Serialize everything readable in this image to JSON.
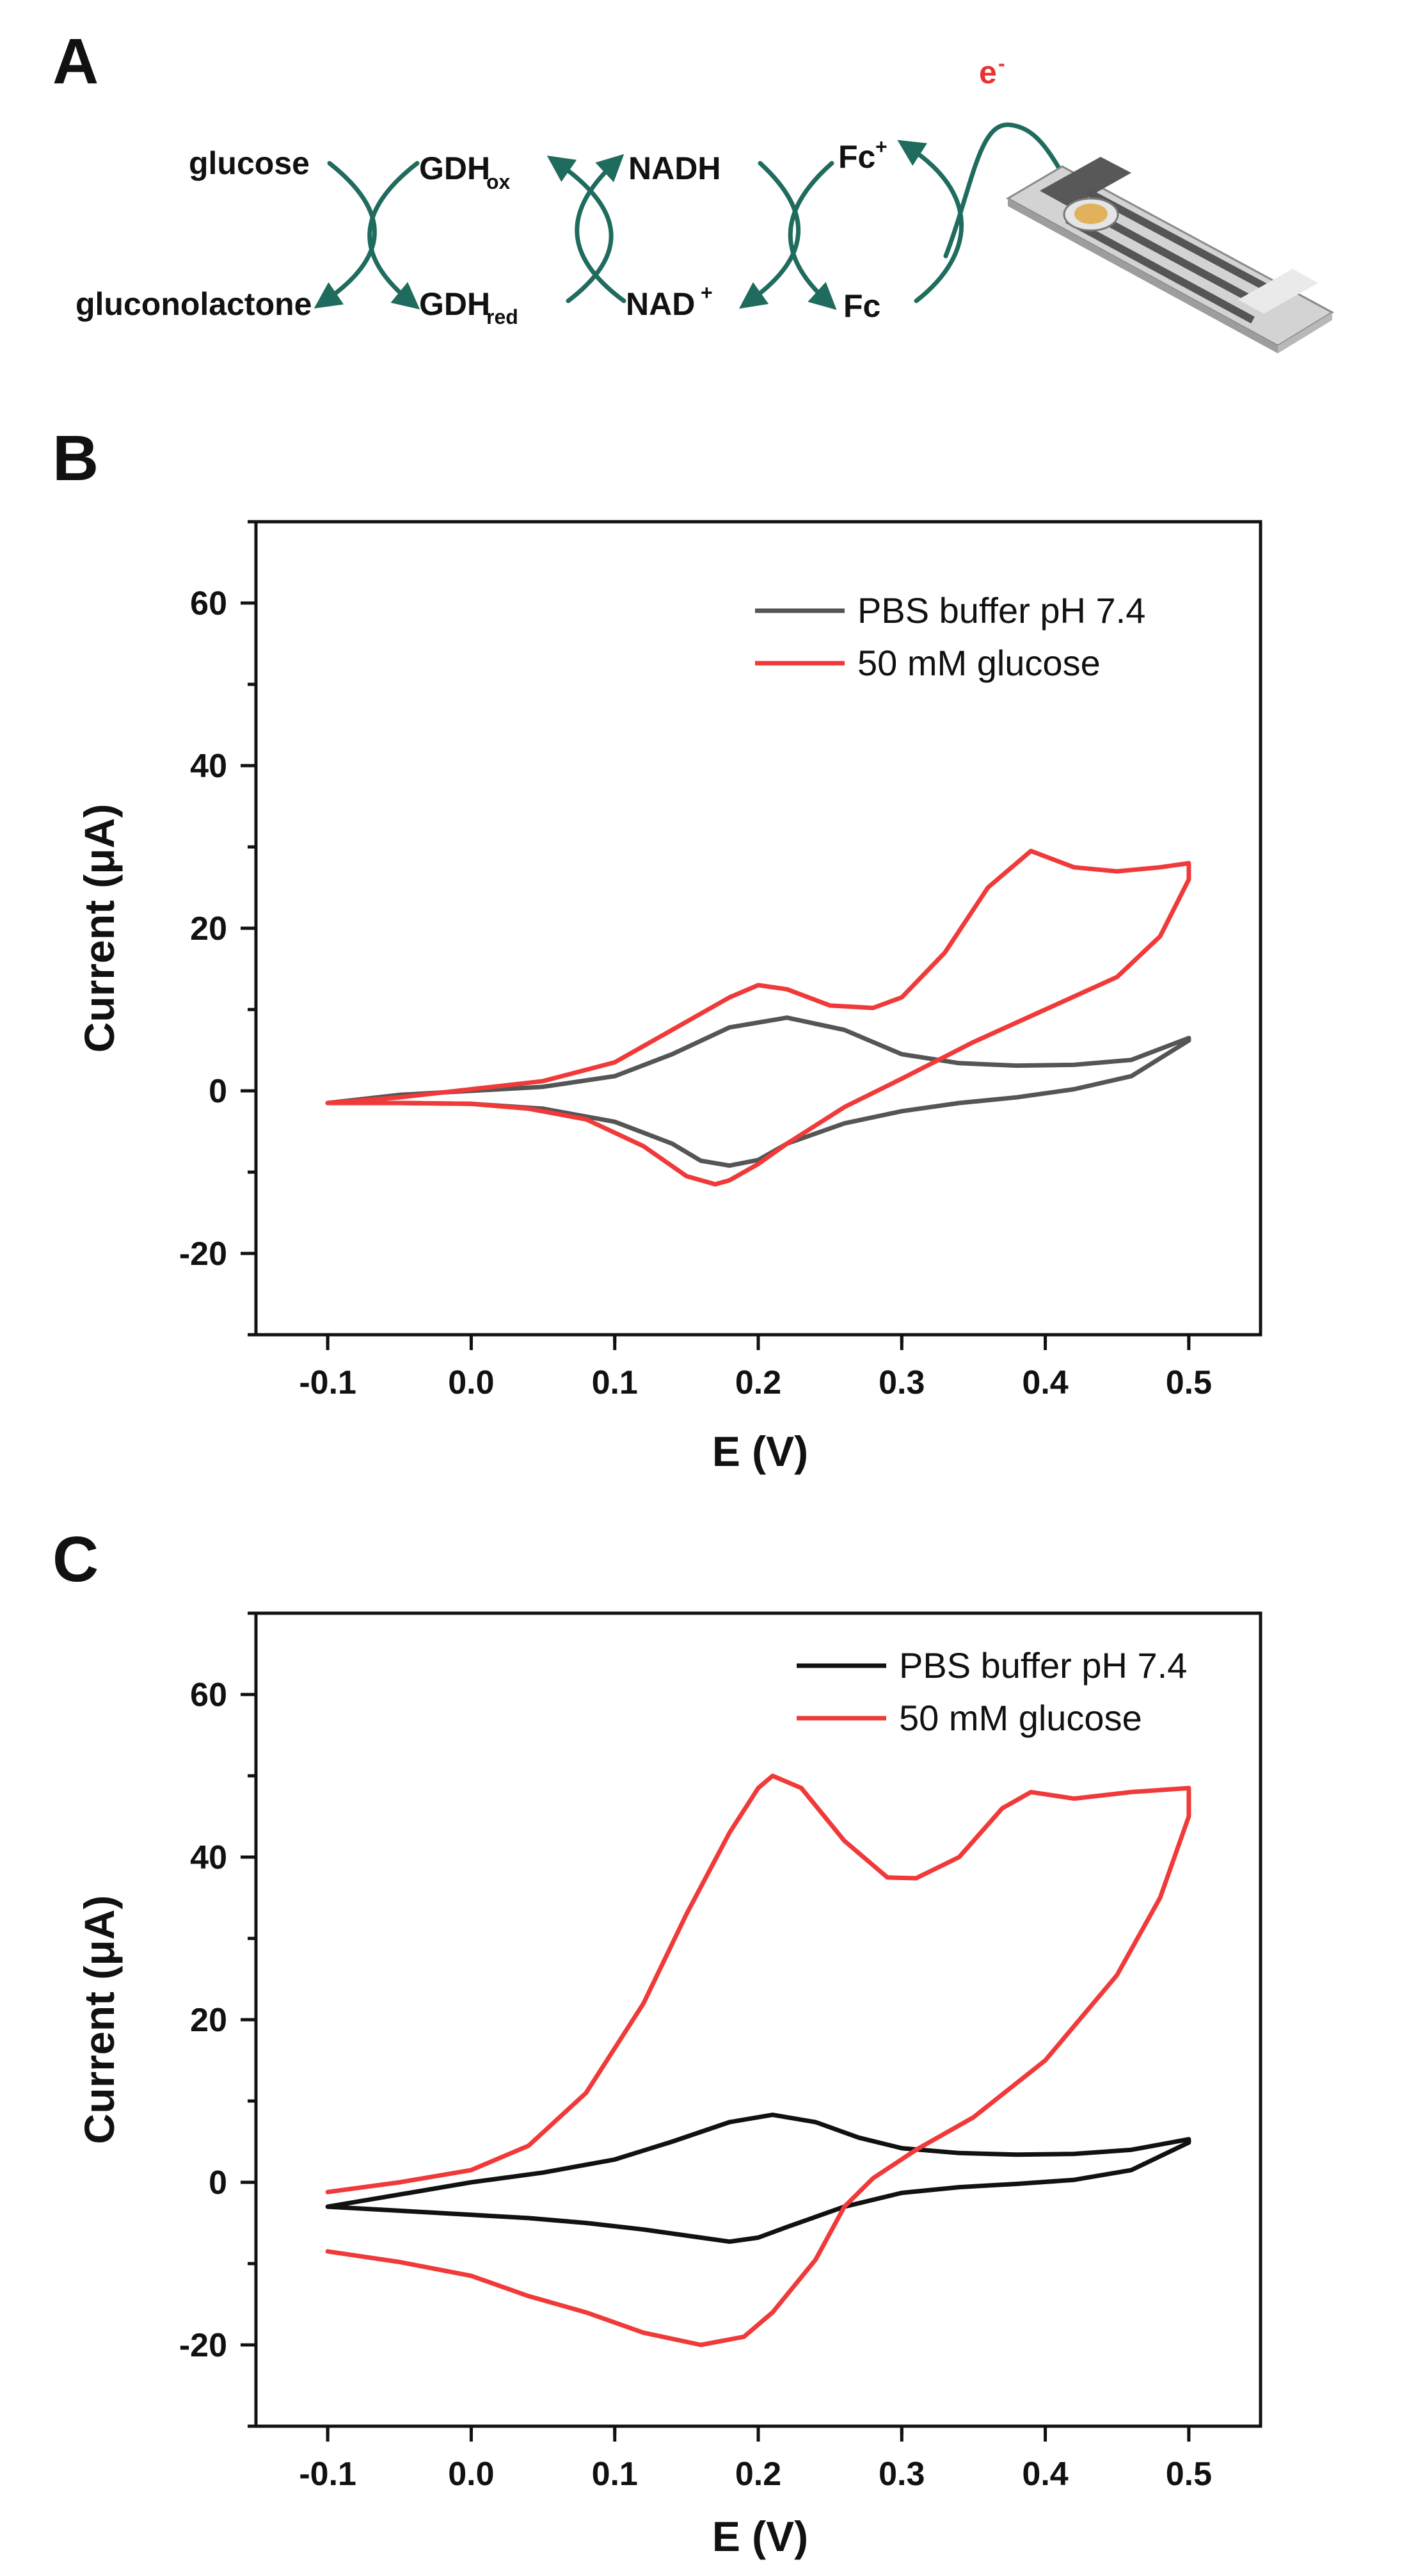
{
  "panels": {
    "A": {
      "letter": "A",
      "scheme": {
        "glucose": "glucose",
        "gluconolactone": "gluconolactone",
        "gdh_ox": "GDH",
        "gdh_ox_sub": "ox",
        "gdh_red": "GDH",
        "gdh_red_sub": "red",
        "nadh": "NADH",
        "nad": "NAD",
        "nad_sup": "+",
        "fc_plus": "Fc",
        "fc_plus_sup": "+",
        "fc": "Fc",
        "electron": "e",
        "electron_sup": "-"
      },
      "colors": {
        "arrow": "#1f6b5e",
        "electron": "#e8322f"
      }
    }
  },
  "chart_data": [
    {
      "panel": "B",
      "type": "line",
      "title": "",
      "xlabel": "E (V)",
      "ylabel": "Current (μA)",
      "xlim": [
        -0.15,
        0.55
      ],
      "ylim": [
        -30,
        70
      ],
      "xticks": [
        -0.1,
        0.0,
        0.1,
        0.2,
        0.3,
        0.4,
        0.5
      ],
      "xtick_labels": [
        "-0.1",
        "0.0",
        "0.1",
        "0.2",
        "0.3",
        "0.4",
        "0.5"
      ],
      "yticks": [
        -20,
        0,
        20,
        40,
        60
      ],
      "ytick_labels": [
        "-20",
        "0",
        "20",
        "40",
        "60"
      ],
      "legend_position": "top-right",
      "series": [
        {
          "name": "PBS buffer pH 7.4",
          "color": "#555555",
          "x": [
            -0.1,
            -0.05,
            0.0,
            0.05,
            0.1,
            0.14,
            0.18,
            0.22,
            0.26,
            0.3,
            0.34,
            0.38,
            0.42,
            0.46,
            0.5,
            0.5,
            0.46,
            0.42,
            0.38,
            0.34,
            0.3,
            0.26,
            0.22,
            0.2,
            0.18,
            0.16,
            0.14,
            0.1,
            0.05,
            0.0,
            -0.05,
            -0.1
          ],
          "y": [
            -1.5,
            -0.5,
            0.0,
            0.5,
            1.8,
            4.5,
            7.8,
            9.0,
            7.5,
            4.5,
            3.4,
            3.1,
            3.2,
            3.8,
            6.5,
            6.2,
            1.8,
            0.2,
            -0.8,
            -1.5,
            -2.5,
            -4.0,
            -6.5,
            -8.5,
            -9.2,
            -8.6,
            -6.5,
            -3.8,
            -2.2,
            -1.6,
            -1.5,
            -1.5
          ]
        },
        {
          "name": "50 mM glucose",
          "color": "#f03a3a",
          "x": [
            -0.1,
            -0.05,
            0.0,
            0.05,
            0.1,
            0.14,
            0.18,
            0.2,
            0.22,
            0.25,
            0.28,
            0.3,
            0.33,
            0.36,
            0.39,
            0.42,
            0.45,
            0.48,
            0.5,
            0.5,
            0.48,
            0.45,
            0.4,
            0.35,
            0.3,
            0.26,
            0.22,
            0.2,
            0.18,
            0.17,
            0.15,
            0.12,
            0.08,
            0.04,
            0.0,
            -0.05,
            -0.1
          ],
          "y": [
            -1.5,
            -0.8,
            0.2,
            1.2,
            3.5,
            7.5,
            11.5,
            13.0,
            12.5,
            10.5,
            10.2,
            11.5,
            17.0,
            25.0,
            29.5,
            27.5,
            27.0,
            27.5,
            28.0,
            26.0,
            19.0,
            14.0,
            10.0,
            6.0,
            1.5,
            -2.0,
            -6.5,
            -9.0,
            -11.0,
            -11.5,
            -10.5,
            -6.8,
            -3.5,
            -2.2,
            -1.6,
            -1.5,
            -1.5
          ]
        }
      ]
    },
    {
      "panel": "C",
      "type": "line",
      "title": "",
      "xlabel": "E (V)",
      "ylabel": "Current (μA)",
      "xlim": [
        -0.15,
        0.55
      ],
      "ylim": [
        -30,
        70
      ],
      "xticks": [
        -0.1,
        0.0,
        0.1,
        0.2,
        0.3,
        0.4,
        0.5
      ],
      "xtick_labels": [
        "-0.1",
        "0.0",
        "0.1",
        "0.2",
        "0.3",
        "0.4",
        "0.5"
      ],
      "yticks": [
        -20,
        0,
        20,
        40,
        60
      ],
      "ytick_labels": [
        "-20",
        "0",
        "20",
        "40",
        "60"
      ],
      "legend_position": "top-right",
      "series": [
        {
          "name": "PBS buffer pH 7.4",
          "color": "#111111",
          "x": [
            -0.1,
            -0.05,
            0.0,
            0.05,
            0.1,
            0.14,
            0.18,
            0.21,
            0.24,
            0.27,
            0.3,
            0.34,
            0.38,
            0.42,
            0.46,
            0.5,
            0.5,
            0.46,
            0.42,
            0.38,
            0.34,
            0.3,
            0.26,
            0.22,
            0.2,
            0.18,
            0.16,
            0.12,
            0.08,
            0.04,
            0.0,
            -0.05,
            -0.1
          ],
          "y": [
            -3.0,
            -1.5,
            0.0,
            1.2,
            2.8,
            5.0,
            7.4,
            8.3,
            7.4,
            5.5,
            4.2,
            3.6,
            3.4,
            3.5,
            4.0,
            5.3,
            4.9,
            1.5,
            0.3,
            -0.2,
            -0.6,
            -1.3,
            -3.0,
            -5.5,
            -6.8,
            -7.3,
            -6.8,
            -5.8,
            -5.0,
            -4.4,
            -4.0,
            -3.5,
            -3.0
          ]
        },
        {
          "name": "50 mM glucose",
          "color": "#f03a3a",
          "x": [
            -0.1,
            -0.05,
            0.0,
            0.04,
            0.08,
            0.12,
            0.15,
            0.18,
            0.2,
            0.21,
            0.23,
            0.26,
            0.29,
            0.31,
            0.34,
            0.37,
            0.39,
            0.42,
            0.46,
            0.5,
            0.5,
            0.48,
            0.45,
            0.4,
            0.35,
            0.31,
            0.28,
            0.26,
            0.24,
            0.21,
            0.19,
            0.16,
            0.12,
            0.08,
            0.04,
            0.0,
            -0.05,
            -0.1
          ],
          "y": [
            -1.2,
            0.0,
            1.5,
            4.5,
            11.0,
            22.0,
            33.0,
            43.0,
            48.5,
            50.0,
            48.5,
            42.0,
            37.5,
            37.4,
            40.0,
            46.0,
            48.0,
            47.2,
            48.0,
            48.5,
            45.0,
            35.0,
            25.5,
            15.0,
            8.0,
            4.0,
            0.5,
            -3.0,
            -9.5,
            -16.0,
            -19.0,
            -20.0,
            -18.5,
            -16.0,
            -14.0,
            -11.5,
            -9.8,
            -8.5
          ]
        }
      ]
    }
  ]
}
